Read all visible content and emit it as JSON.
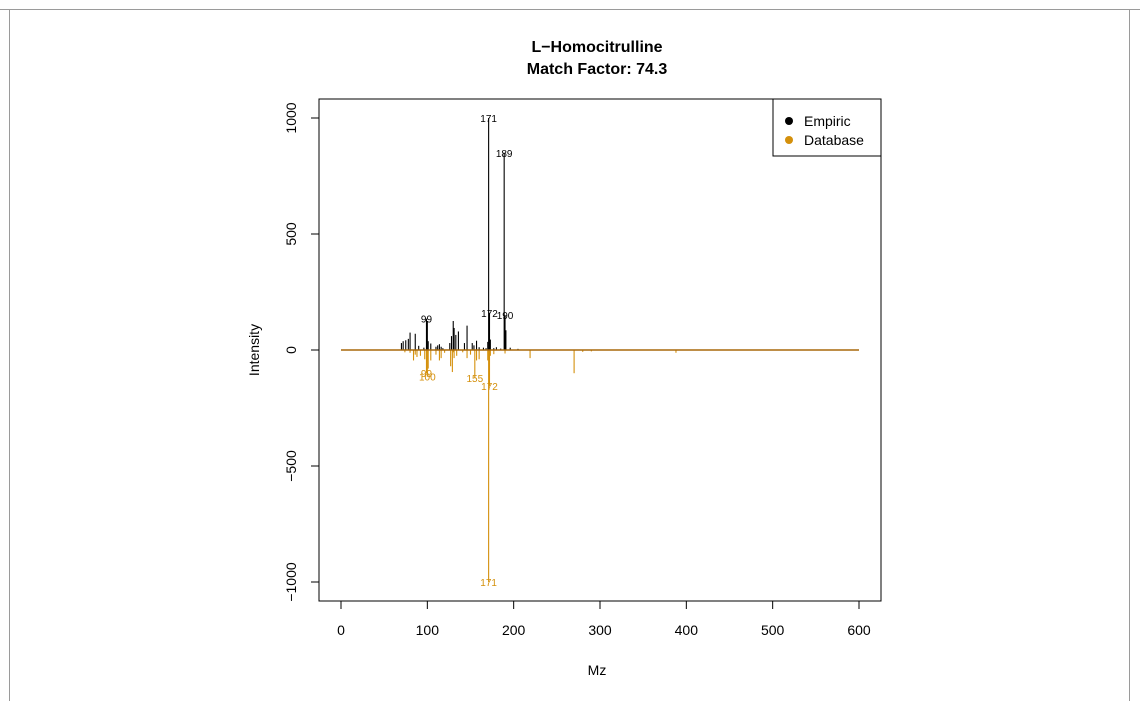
{
  "chart_data": {
    "type": "bar",
    "title": "L−Homocitrulline",
    "subtitle": "Match Factor: 74.3",
    "xlabel": "Mz",
    "ylabel": "Intensity",
    "xlim": [
      0,
      600
    ],
    "ylim": [
      -1000,
      1000
    ],
    "x_ticks": [
      0,
      100,
      200,
      300,
      400,
      500,
      600
    ],
    "x_tick_labels": [
      "0",
      "100",
      "200",
      "300",
      "400",
      "500",
      "600"
    ],
    "y_ticks": [
      -1000,
      -500,
      0,
      500,
      1000
    ],
    "y_tick_labels": [
      "−1000",
      "−500",
      "0",
      "500",
      "1000"
    ],
    "grid": false,
    "legend_position": "top-right",
    "colors": {
      "empiric": "#000000",
      "database": "#d4900c",
      "baseline": "#a8690b"
    },
    "series": [
      {
        "name": "Empiric",
        "color": "#000000",
        "mz": [
          70,
          72,
          75,
          78,
          80,
          86,
          90,
          96,
          99,
          100,
          101,
          104,
          110,
          112,
          114,
          116,
          118,
          126,
          128,
          130,
          131,
          133,
          136,
          143,
          146,
          152,
          154,
          157,
          160,
          165,
          168,
          170,
          171,
          172,
          173,
          177,
          180,
          185,
          189,
          190,
          191,
          196,
          205
        ],
        "intensity": [
          30,
          38,
          42,
          48,
          75,
          70,
          18,
          10,
          135,
          125,
          38,
          28,
          14,
          20,
          25,
          14,
          8,
          30,
          60,
          125,
          95,
          65,
          80,
          30,
          105,
          30,
          20,
          40,
          12,
          10,
          8,
          35,
          1000,
          160,
          45,
          8,
          12,
          6,
          850,
          150,
          85,
          10,
          5
        ]
      },
      {
        "name": "Database",
        "color": "#d4900c",
        "mz": [
          74,
          80,
          84,
          86,
          88,
          92,
          97,
          99,
          100,
          101,
          104,
          110,
          114,
          116,
          120,
          127,
          129,
          130,
          131,
          134,
          141,
          146,
          150,
          155,
          157,
          160,
          170,
          171,
          172,
          173,
          177,
          190,
          219,
          270,
          280,
          290,
          388
        ],
        "intensity": [
          -10,
          -12,
          -45,
          -20,
          -30,
          -25,
          -40,
          -100,
          -115,
          -80,
          -45,
          -20,
          -45,
          -35,
          -12,
          -70,
          -95,
          -10,
          -35,
          -25,
          -10,
          -35,
          -20,
          -120,
          -45,
          -40,
          -45,
          -1000,
          -155,
          -25,
          -18,
          -15,
          -35,
          -100,
          -8,
          -6,
          -12
        ]
      }
    ],
    "peak_labels": [
      {
        "series": "Empiric",
        "mz": 99,
        "intensity": 135,
        "text": "99"
      },
      {
        "series": "Empiric",
        "mz": 171,
        "intensity": 1000,
        "text": "171"
      },
      {
        "series": "Empiric",
        "mz": 172,
        "intensity": 160,
        "text": "172"
      },
      {
        "series": "Empiric",
        "mz": 189,
        "intensity": 850,
        "text": "189"
      },
      {
        "series": "Empiric",
        "mz": 190,
        "intensity": 150,
        "text": "190"
      },
      {
        "series": "Database",
        "mz": 99,
        "intensity": -100,
        "text": "99"
      },
      {
        "series": "Database",
        "mz": 100,
        "intensity": -115,
        "text": "100"
      },
      {
        "series": "Database",
        "mz": 155,
        "intensity": -120,
        "text": "155"
      },
      {
        "series": "Database",
        "mz": 172,
        "intensity": -155,
        "text": "172"
      },
      {
        "series": "Database",
        "mz": 171,
        "intensity": -1000,
        "text": "171"
      }
    ],
    "legend": [
      {
        "label": "Empiric",
        "color": "#000000"
      },
      {
        "label": "Database",
        "color": "#d4900c"
      }
    ]
  }
}
